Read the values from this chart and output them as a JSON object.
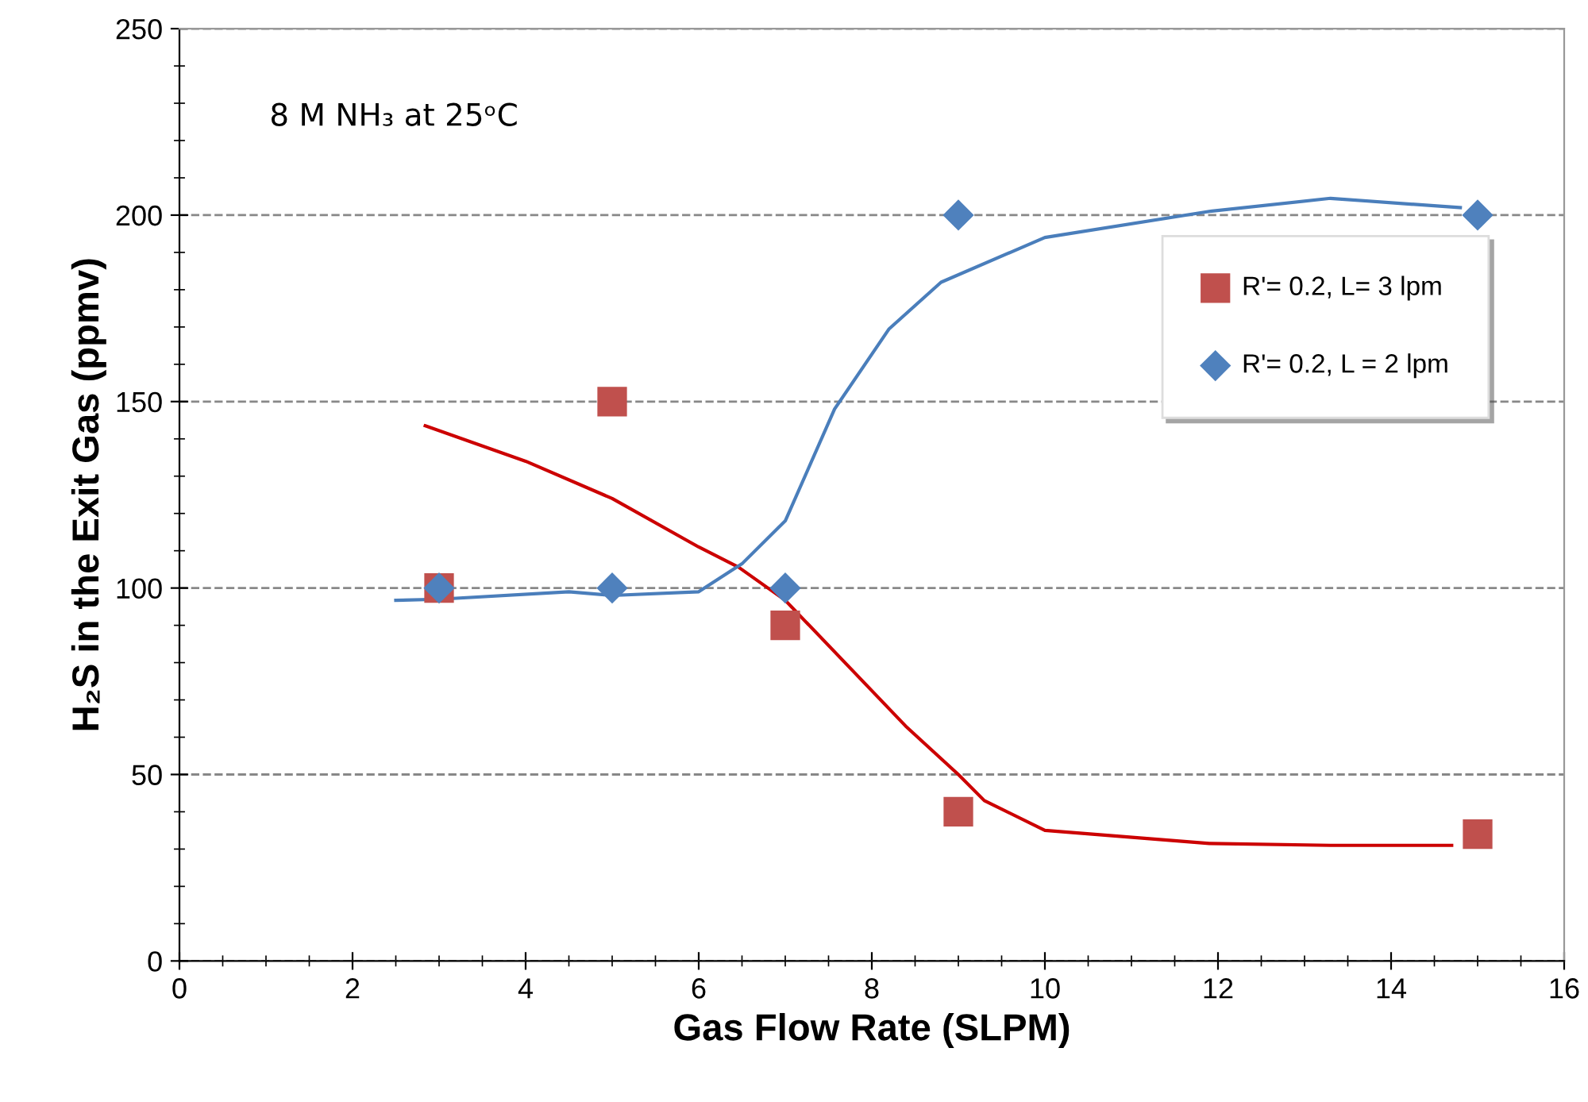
{
  "chart_data": {
    "type": "scatter",
    "xlabel": "Gas Flow Rate (SLPM)",
    "ylabel": "H₂S in the Exit Gas (ppmv)",
    "annotations": [
      "8 M NH₃ at 25ᵒC"
    ],
    "xlim": [
      0,
      16
    ],
    "xticks": [
      0,
      2,
      4,
      6,
      8,
      10,
      12,
      14,
      16
    ],
    "ylim": [
      0,
      250
    ],
    "yticks": [
      0,
      50,
      100,
      150,
      200,
      250
    ],
    "grid": "y",
    "legend": "right",
    "series": [
      {
        "type": "line",
        "color": "#cc0000",
        "marker": "none",
        "x": [
          2.84,
          4,
          5,
          6,
          6.46,
          7,
          8.39,
          9,
          9.3,
          10,
          11.9,
          13.3,
          14.7
        ],
        "values": [
          143.5,
          134,
          124,
          111,
          105.6,
          96.7,
          63,
          50,
          43,
          35,
          31.5,
          31,
          31
        ]
      },
      {
        "type": "line",
        "color": "#4a7ebb",
        "marker": "none",
        "x": [
          2.5,
          3,
          4.5,
          5,
          6,
          6.5,
          7,
          7.57,
          8.2,
          8.8,
          10,
          11.9,
          13.3,
          14.8
        ],
        "values": [
          96.7,
          97,
          99,
          98,
          99,
          106.5,
          118,
          148,
          169.5,
          182,
          194,
          201,
          204.5,
          202
        ]
      },
      {
        "name": "R'= 0.2, L= 3 lpm",
        "color": "#c0504d",
        "marker": "square",
        "x": [
          3,
          5,
          7,
          9,
          15
        ],
        "values": [
          100,
          150,
          90,
          40,
          34
        ]
      },
      {
        "name": "R'= 0.2, L = 2 lpm",
        "color": "#4f81bd",
        "marker": "diamond",
        "x": [
          3,
          5,
          7,
          9,
          15
        ],
        "values": [
          100,
          100,
          100,
          200,
          200
        ]
      }
    ]
  }
}
